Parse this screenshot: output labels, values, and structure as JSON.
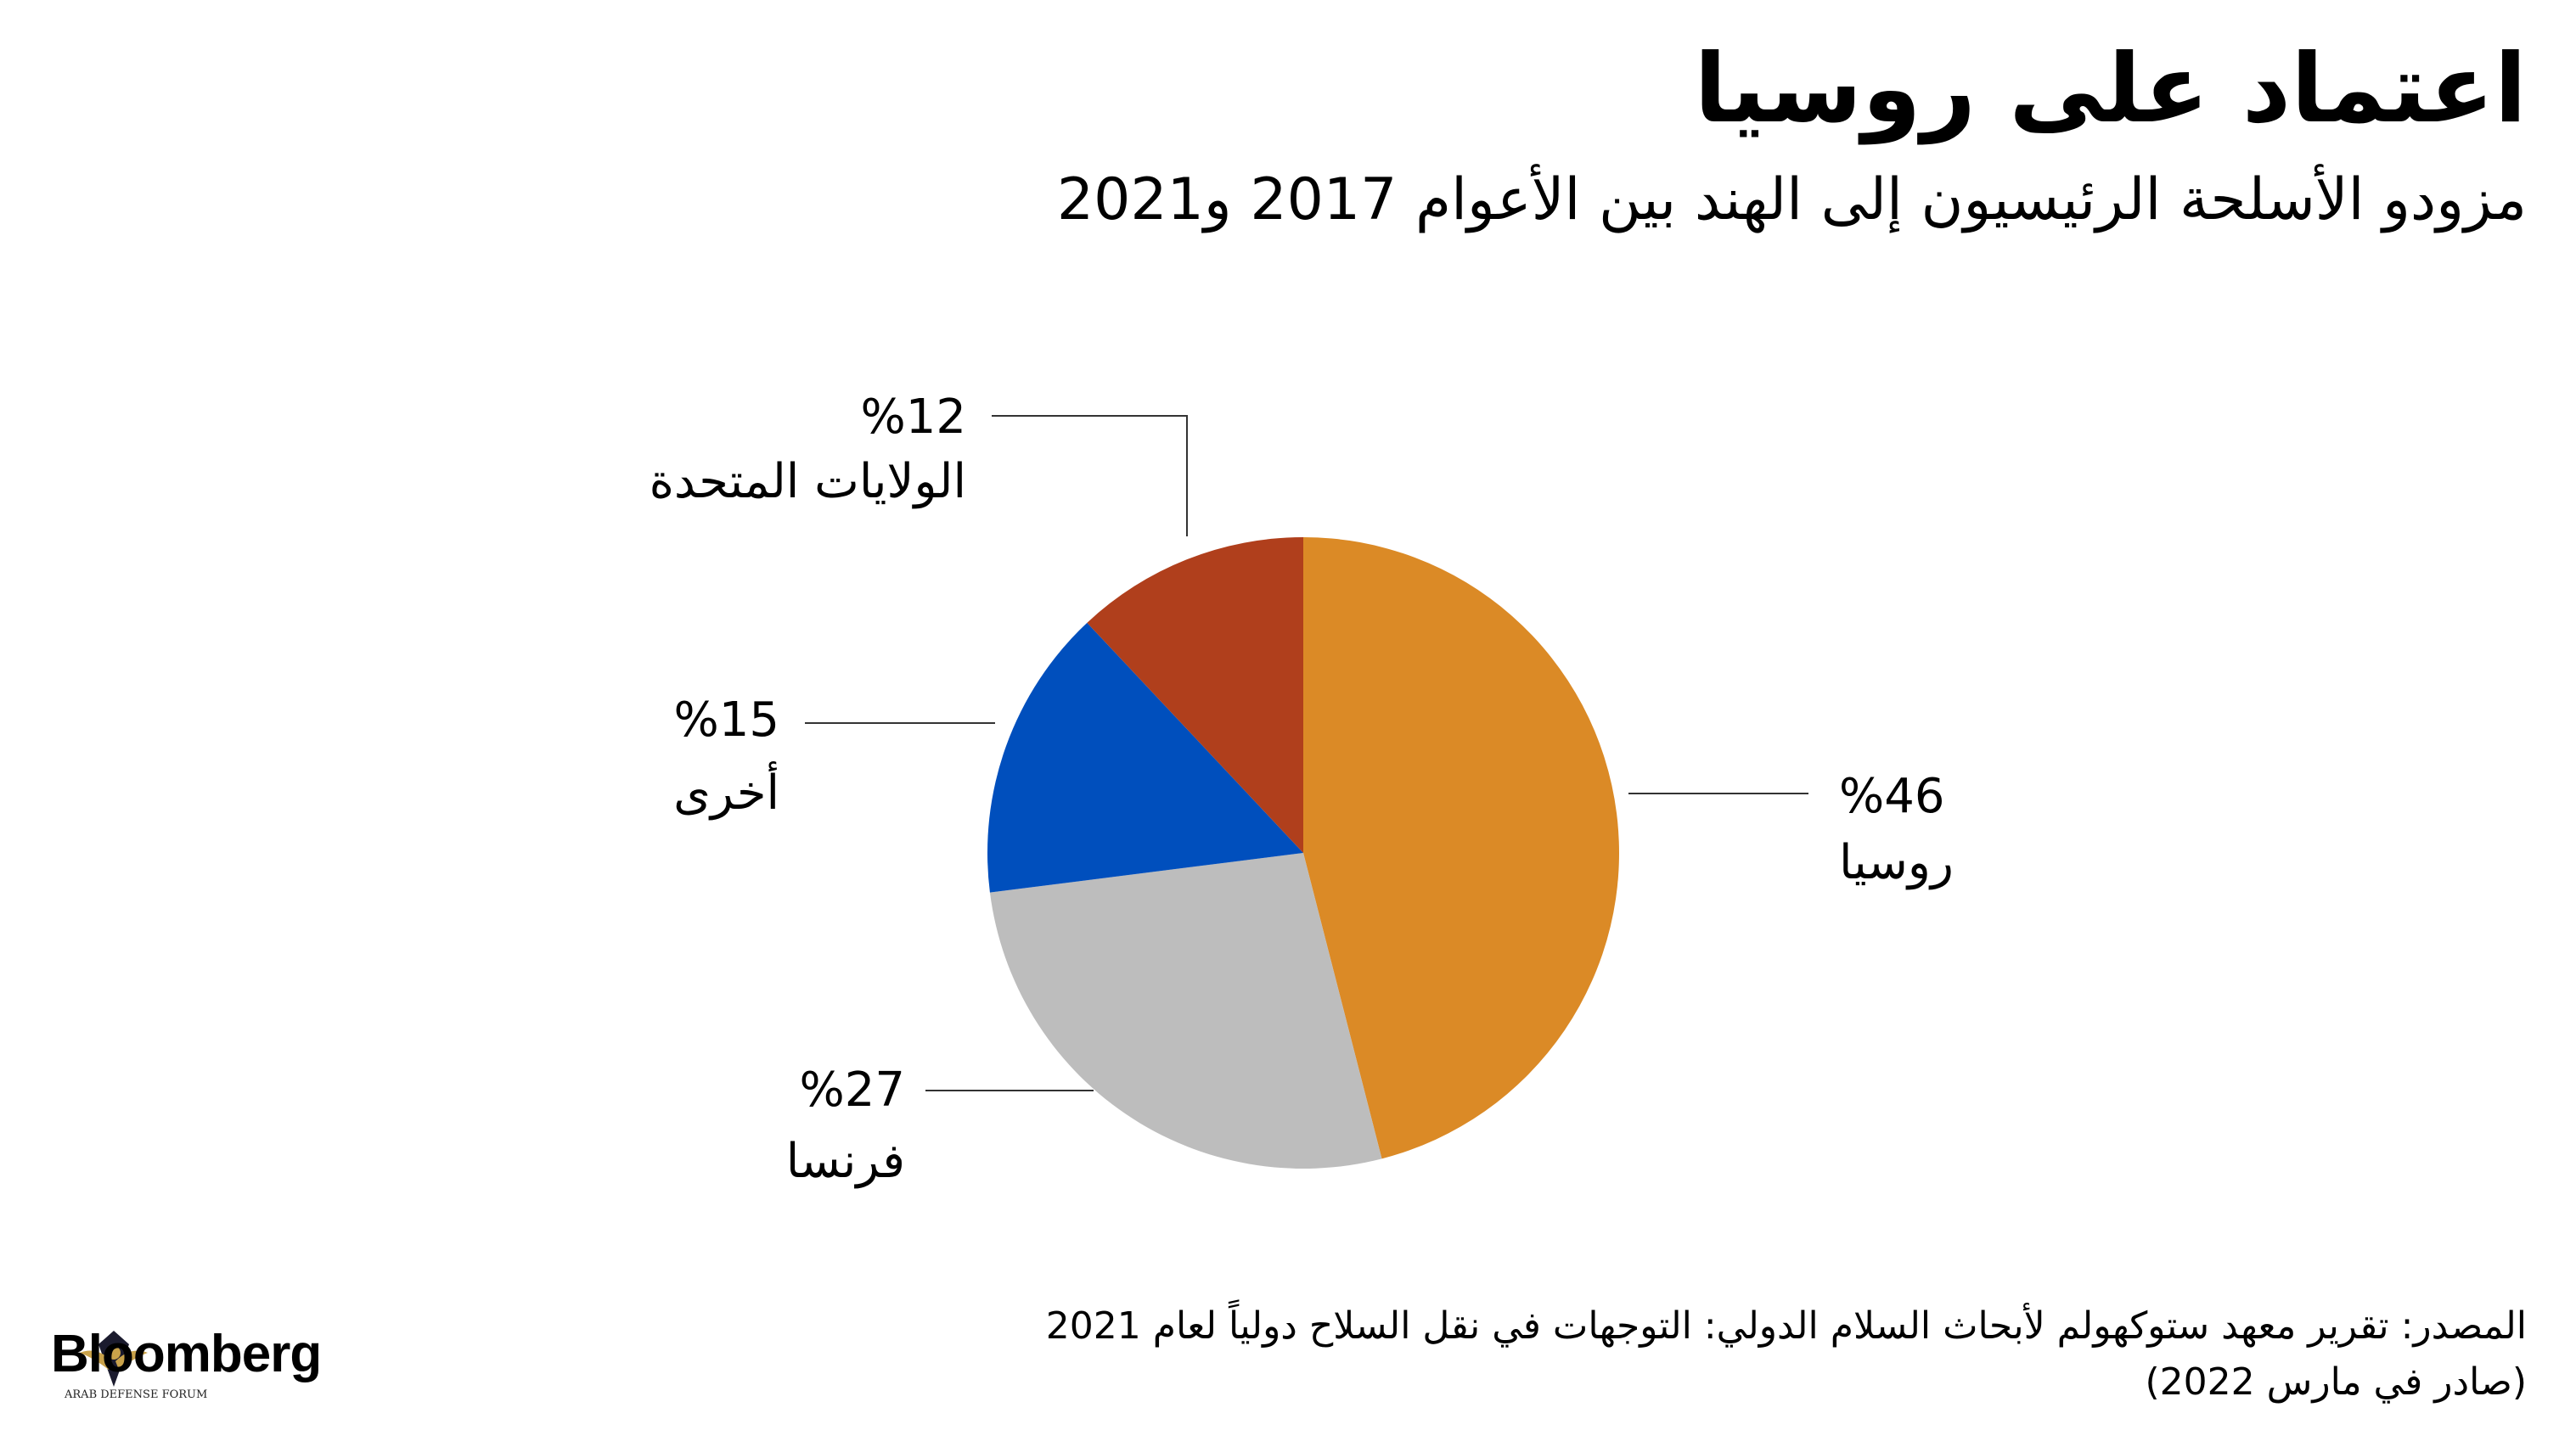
{
  "title": "اعتماد على روسيا",
  "subtitle": "مزودو الأسلحة الرئيسيون إلى الهند بين الأعوام 2017 و2021",
  "chart_data": {
    "type": "pie",
    "start_angle_deg": 0,
    "direction": "clockwise",
    "slices": [
      {
        "label": "روسيا",
        "value": 46,
        "value_label": "%46",
        "color": "#db8a26"
      },
      {
        "label": "فرنسا",
        "value": 27,
        "value_label": "%27",
        "color": "#bdbdbd"
      },
      {
        "label": "أخرى",
        "value": 15,
        "value_label": "%15",
        "color": "#004fbd"
      },
      {
        "label": "الولايات المتحدة",
        "value": 12,
        "value_label": "%12",
        "color": "#b03f1c"
      }
    ]
  },
  "source": {
    "line1": "المصدر: تقرير معهد ستوكهولم لأبحاث السلام الدولي: التوجهات في نقل السلاح دولياً لعام 2021",
    "line2": "(صادر في مارس 2022)"
  },
  "logo": {
    "wordmark": "Bloomberg",
    "watermark": "ARAB DEFENSE FORUM"
  }
}
